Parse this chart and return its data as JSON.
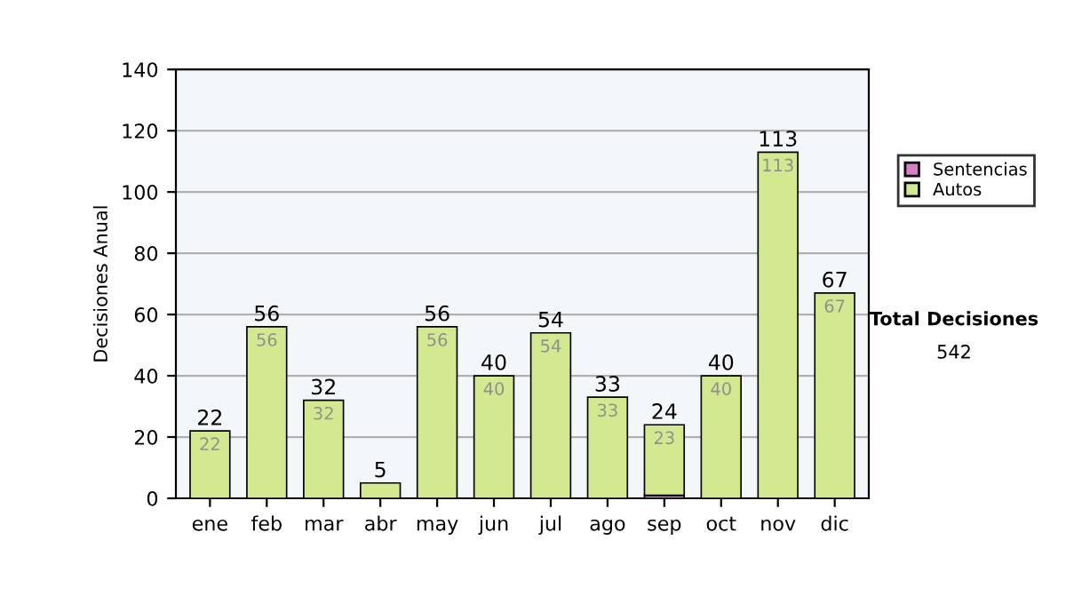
{
  "chart_data": {
    "type": "bar",
    "stacked": true,
    "ylabel": "Decisiones Anual",
    "categories": [
      "ene",
      "feb",
      "mar",
      "abr",
      "may",
      "jun",
      "jul",
      "ago",
      "sep",
      "oct",
      "nov",
      "dic"
    ],
    "series": [
      {
        "name": "Sentencias",
        "color": "#d77fc8",
        "values": [
          0,
          0,
          0,
          0,
          0,
          0,
          0,
          0,
          1,
          0,
          0,
          0
        ]
      },
      {
        "name": "Autos",
        "color": "#d3e98f",
        "values": [
          22,
          56,
          32,
          5,
          56,
          40,
          54,
          33,
          23,
          40,
          113,
          67
        ],
        "value_labels": [
          "22",
          "56",
          "32",
          null,
          "56",
          "40",
          "54",
          "33",
          "23",
          "40",
          "113",
          "67"
        ]
      }
    ],
    "totals": [
      "22",
      "56",
      "32",
      "5",
      "56",
      "40",
      "54",
      "33",
      "24",
      "40",
      "113",
      "67"
    ],
    "ylim": [
      0,
      140
    ],
    "yticks": [
      0,
      20,
      40,
      60,
      80,
      100,
      120,
      140
    ],
    "grid": "y",
    "legend": "right",
    "annotations": [
      "Total Decisiones",
      "542"
    ]
  }
}
